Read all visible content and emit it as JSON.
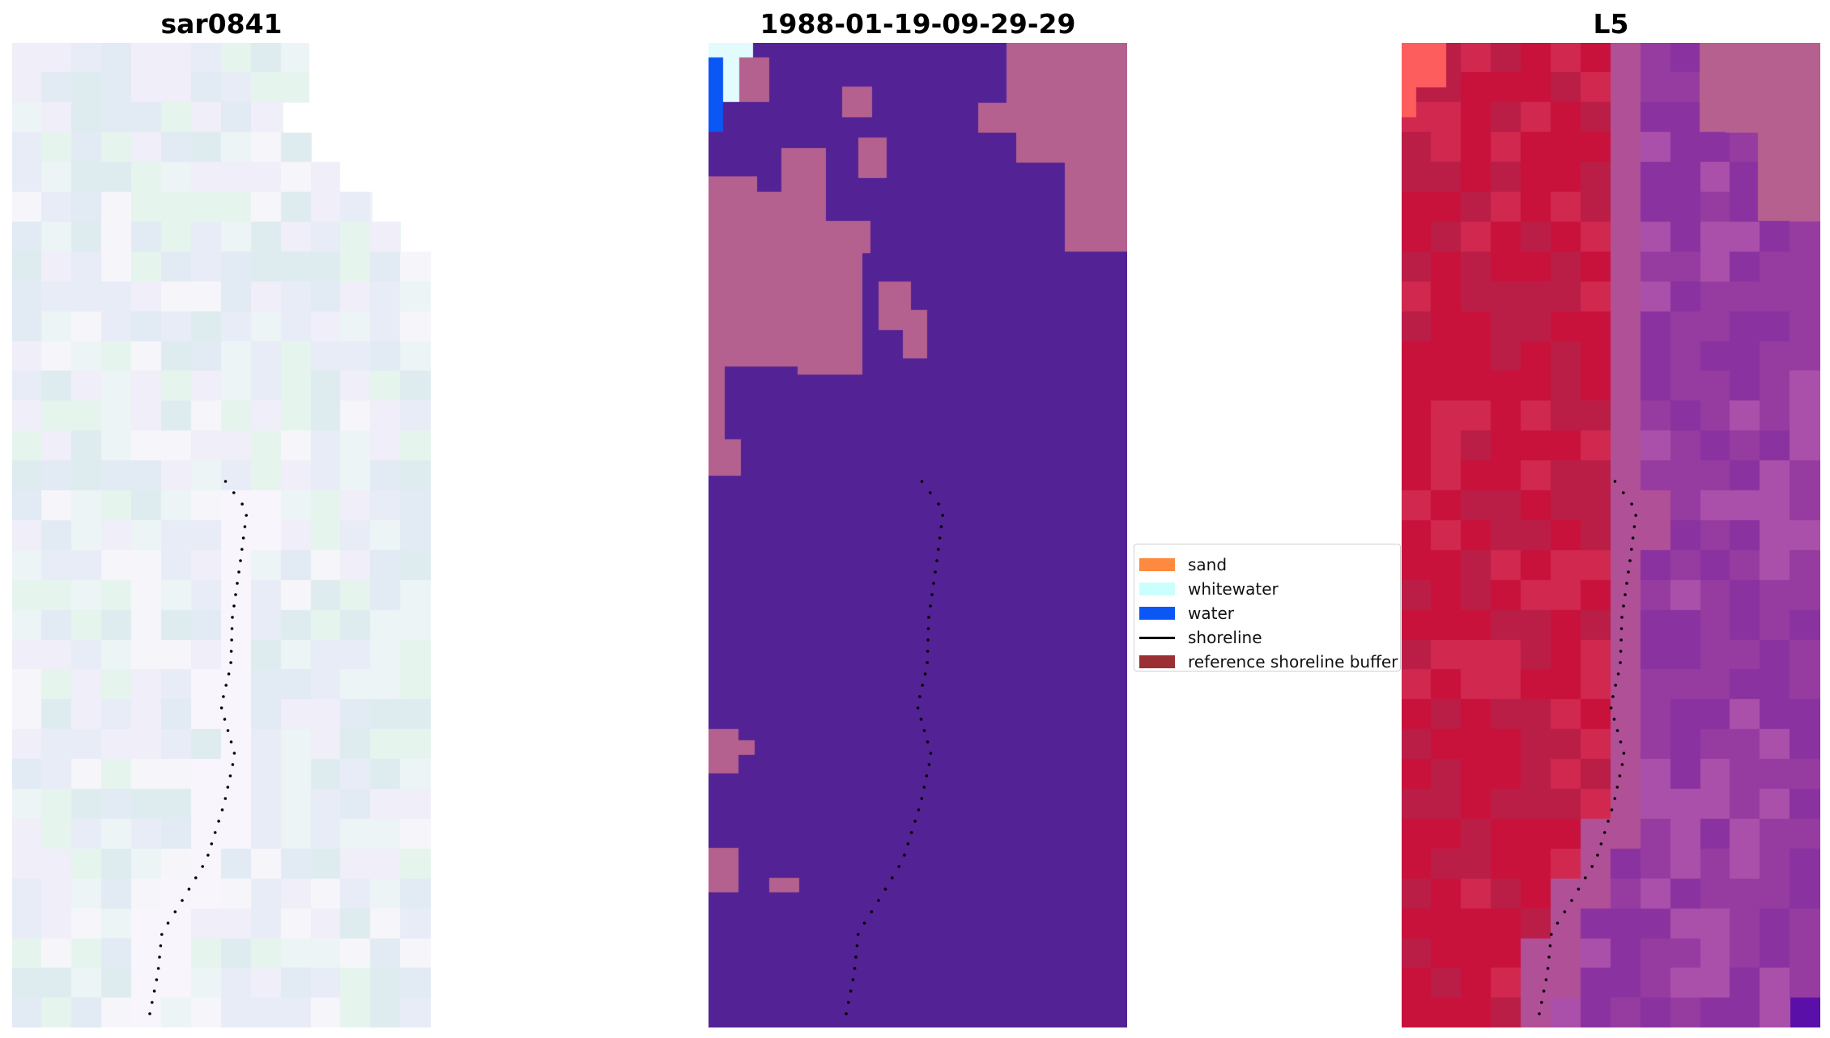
{
  "panels": [
    {
      "title": "sar0841"
    },
    {
      "title": "1988-01-19-09-29-29"
    },
    {
      "title": "L5"
    }
  ],
  "legend": {
    "items": [
      {
        "label": "sand",
        "type": "patch",
        "color": "#fd8a3e"
      },
      {
        "label": "whitewater",
        "type": "patch",
        "color": "#cbfffd"
      },
      {
        "label": "water",
        "type": "patch",
        "color": "#0b57f5"
      },
      {
        "label": "shoreline",
        "type": "line",
        "color": "#000000"
      },
      {
        "label": "reference shoreline buffer",
        "type": "patch",
        "color": "#9a2f34"
      }
    ]
  },
  "colors": {
    "classification_background": "#532294",
    "classification_patch": "#b46190",
    "rgb_sand_red": "#c8173b",
    "rgb_water_purple": "#8c3c9c",
    "shoreline_points": "#000000"
  }
}
